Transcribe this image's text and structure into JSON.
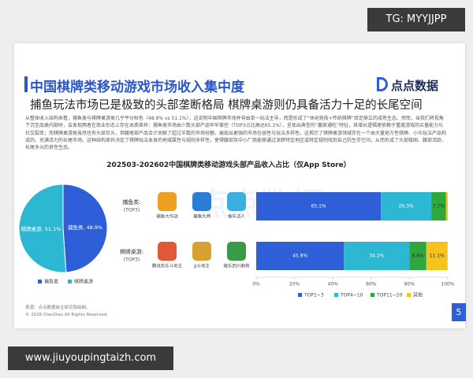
{
  "overlay_top": "TG: MYYJJPP",
  "overlay_bottom": "www.jiuyoupingtaizh.com",
  "header": {
    "title": "中国棋牌类移动游戏市场收入集中度",
    "logo": "点点数据",
    "subtitle": "捕鱼玩法市场已是极致的头部垄断格局 棋牌桌游则仍具备活力十足的长尾空间"
  },
  "body_text": "从整体收入结构来看，捕鱼类与棋牌桌游类几乎平分秋色（48.9% vs 51.1%），这说明中国棋牌市场并非由单一玩法主导，而是形成了“休闲竞技+传统棋牌”双足鼎立的成熟生态。然而，当我们将视角下沉至品类内部时，会发现两者在商业形态上存在本质差异：捕鱼类市场由少数头部产品牢牢掌控（TOP3占比高达65.1%），呈现出典型的“赢家通吃”特征，其增长逻辑更依赖于重度游戏的买量能力与社交裂变；而棋牌桌游类虽然也有头部巨头，但腰尾部产品合计贡献了超过半数的市场份额，展现出更强的市场包容性与玩法多样性。这揭示了棋牌桌游领域存在一个由大量地方性棋牌、小众玩法产品构成的、充满活力的长尾市场。这种结构差异决定了棋牌玩法本身的地域属性与规则多样性，使得腰部及中小厂商能够通过深耕特定地区或特定规则找到自己的生存空间，从而形成了头部稳固、腰部活跃、长尾多元的良性生态。",
  "watermark": "点点数据",
  "chart_title": "202503-202602中国棋牌类移动游戏头部产品收入占比（仅App Store）",
  "chart_data": [
    {
      "type": "pie",
      "categories": [
        "捕鱼类",
        "棋牌桌游"
      ],
      "values": [
        48.9,
        51.1
      ],
      "value_labels": [
        "捕鱼类, 48.9%",
        "棋牌桌游, 51.1%"
      ],
      "colors": [
        "#2f5fd8",
        "#2cb8d3"
      ]
    },
    {
      "type": "stacked-bar-h",
      "categories": [
        "捕鱼类:",
        "棋牌桌游:"
      ],
      "category_sublabels": [
        "(TOP3)",
        "(TOP3)"
      ],
      "apps": [
        [
          "捕鱼大作战",
          "捕鱼大师",
          "鱼乐达人"
        ],
        [
          "腾讯欢乐斗地主",
          "JJ斗地主",
          "微乐四川麻将"
        ]
      ],
      "series": [
        {
          "name": "TOP1~3",
          "color": "#2f5fd8",
          "values": [
            65.1,
            45.8
          ],
          "value_labels": [
            "65.1%",
            "45.8%"
          ]
        },
        {
          "name": "TOP4~10",
          "color": "#2cb8d3",
          "values": [
            26.3,
            34.2
          ],
          "value_labels": [
            "26.3%",
            "34.2%"
          ]
        },
        {
          "name": "TOP11~20",
          "color": "#2ea83c",
          "values": [
            7.7,
            8.8
          ],
          "value_labels": [
            "7.7%",
            "8.8%"
          ]
        },
        {
          "name": "其他",
          "color": "#f6c21c",
          "values": [
            0.9,
            11.1
          ],
          "value_labels": [
            null,
            "11.1%"
          ]
        }
      ],
      "xlim": [
        0,
        100
      ],
      "xticks": [
        {
          "value": 0,
          "label": "0%"
        },
        {
          "value": 20,
          "label": "20%"
        },
        {
          "value": 40,
          "label": "40%"
        },
        {
          "value": 60,
          "label": "60%"
        },
        {
          "value": 80,
          "label": "80%"
        },
        {
          "value": 100,
          "label": "100%"
        }
      ]
    }
  ],
  "footer": {
    "source": "来源：点点数据自主研究院绘制。",
    "copyright": "© 2026 DianDian.All Rights Reserved.",
    "page": "5"
  }
}
